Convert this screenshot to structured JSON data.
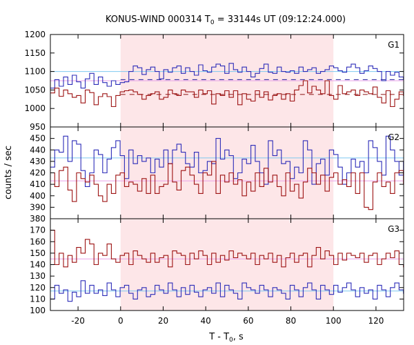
{
  "chart_data": {
    "type": "line",
    "title_main": "KONUS-WIND 000314 T",
    "title_sub": "0",
    "title_rest": " = 33144s UT (09:12:24.000)",
    "xlabel_main": "T - T",
    "xlabel_sub": "0",
    "xlabel_rest": ", s",
    "ylabel": "counts / sec",
    "xlim": [
      -33,
      133
    ],
    "xticks": [
      -20,
      0,
      20,
      40,
      60,
      80,
      100,
      120
    ],
    "xtick_labels": [
      "-20",
      "0",
      "20",
      "40",
      "60",
      "80",
      "100",
      "120"
    ],
    "shade_interval": [
      0,
      100
    ],
    "colors": {
      "shade": "#fde6e8",
      "blue": "#2b2bb8",
      "red": "#9c1010",
      "blue_bg": "#7cc8f0",
      "red_bg": "#e8a0e8",
      "dash": "#1f1f9a",
      "dash_red": "#8a1010"
    },
    "panels": [
      {
        "name": "G1",
        "ylim": [
          950,
          1200
        ],
        "yticks": [
          950,
          1000,
          1050,
          1100,
          1150,
          1200
        ],
        "ytick_labels": [
          "950",
          "1000",
          "1050",
          "1100",
          "1150",
          "1200"
        ],
        "bg_blue": 1100,
        "bg_red": 1075,
        "dash_blue": 1078,
        "dash_red": 1038,
        "series": [
          {
            "color": "blue",
            "x0": -33,
            "dx": 2.048,
            "values": [
              1055,
              1078,
              1060,
              1085,
              1065,
              1090,
              1072,
              1055,
              1080,
              1095,
              1065,
              1085,
              1070,
              1060,
              1075,
              1065,
              1070,
              1072,
              1100,
              1115,
              1110,
              1092,
              1105,
              1112,
              1100,
              1080,
              1105,
              1098,
              1110,
              1115,
              1095,
              1110,
              1100,
              1090,
              1118,
              1102,
              1098,
              1112,
              1120,
              1115,
              1095,
              1122,
              1105,
              1098,
              1112,
              1100,
              1085,
              1095,
              1108,
              1120,
              1098,
              1095,
              1112,
              1100,
              1098,
              1102,
              1095,
              1112,
              1100,
              1105,
              1110,
              1095,
              1100,
              1105,
              1115,
              1110,
              1102,
              1098,
              1112,
              1120,
              1110,
              1095,
              1102,
              1115,
              1108,
              1100,
              1075,
              1100,
              1090,
              1098,
              1085,
              1078
            ]
          },
          {
            "color": "red",
            "x0": -33,
            "dx": 2.048,
            "values": [
              1042,
              1055,
              1033,
              1050,
              1040,
              1030,
              1035,
              1015,
              1050,
              1043,
              1010,
              1032,
              1040,
              1032,
              1005,
              1035,
              1045,
              1048,
              1050,
              1045,
              1038,
              1025,
              1035,
              1040,
              1045,
              1025,
              1030,
              1050,
              1040,
              1035,
              1050,
              1045,
              1045,
              1030,
              1050,
              1040,
              1048,
              1012,
              1040,
              1035,
              1048,
              1030,
              1048,
              1010,
              1040,
              1025,
              1020,
              1048,
              1030,
              1045,
              1023,
              1035,
              1040,
              1025,
              1040,
              1020,
              1050,
              1062,
              1075,
              1042,
              1060,
              1050,
              1040,
              1075,
              1035,
              1025,
              1062,
              1040,
              1045,
              1050,
              1035,
              1050,
              1045,
              1040,
              1058,
              1030,
              1015,
              1048,
              1005,
              1025,
              1045,
              1035
            ]
          }
        ]
      },
      {
        "name": "G2",
        "ylim": [
          380,
          460
        ],
        "yticks": [
          380,
          390,
          400,
          410,
          420,
          430,
          440,
          450
        ],
        "ytick_labels": [
          "380",
          "390",
          "400",
          "410",
          "420",
          "430",
          "440",
          "450"
        ],
        "bg_blue": 433,
        "bg_red": 413,
        "series": [
          {
            "color": "blue",
            "x0": -33,
            "dx": 2.048,
            "values": [
              425,
              440,
              438,
              452,
              430,
              448,
              445,
              422,
              408,
              420,
              440,
              436,
              420,
              432,
              442,
              448,
              435,
              415,
              440,
              428,
              435,
              430,
              433,
              420,
              432,
              425,
              440,
              428,
              440,
              445,
              438,
              428,
              425,
              438,
              420,
              422,
              430,
              428,
              450,
              432,
              440,
              435,
              415,
              420,
              432,
              428,
              444,
              430,
              420,
              410,
              448,
              435,
              440,
              428,
              430,
              415,
              425,
              420,
              448,
              440,
              410,
              428,
              432,
              418,
              440,
              436,
              425,
              410,
              420,
              432,
              425,
              430,
              420,
              448,
              442,
              430,
              418,
              452,
              440,
              430,
              418,
              430
            ]
          },
          {
            "color": "red",
            "x0": -33,
            "dx": 2.048,
            "values": [
              420,
              408,
              422,
              425,
              405,
              395,
              420,
              415,
              412,
              418,
              410,
              400,
              395,
              410,
              402,
              418,
              420,
              408,
              412,
              410,
              404,
              415,
              402,
              418,
              402,
              408,
              410,
              428,
              412,
              405,
              422,
              425,
              418,
              410,
              402,
              420,
              418,
              430,
              402,
              418,
              412,
              420,
              410,
              414,
              400,
              412,
              404,
              420,
              408,
              424,
              412,
              418,
              408,
              400,
              420,
              404,
              410,
              398,
              412,
              424,
              420,
              410,
              418,
              404,
              416,
              420,
              410,
              414,
              408,
              420,
              402,
              420,
              390,
              388,
              412,
              420,
              408,
              412,
              402,
              420,
              422,
              410
            ]
          }
        ]
      },
      {
        "name": "G3",
        "ylim": [
          100,
          180
        ],
        "yticks": [
          100,
          110,
          120,
          130,
          140,
          150,
          160,
          170
        ],
        "ytick_labels": [
          "100",
          "110",
          "120",
          "130",
          "140",
          "150",
          "160",
          "170"
        ],
        "bg_blue": 117,
        "bg_red": 145,
        "series": [
          {
            "color": "blue",
            "x0": -33,
            "dx": 2.048,
            "values": [
              110,
              122,
              115,
              118,
              108,
              116,
              112,
              126,
              115,
              122,
              115,
              118,
              113,
              124,
              118,
              112,
              120,
              122,
              115,
              110,
              118,
              120,
              112,
              114,
              122,
              118,
              115,
              124,
              118,
              112,
              120,
              114,
              122,
              116,
              112,
              118,
              120,
              115,
              124,
              112,
              122,
              118,
              115,
              110,
              124,
              120,
              118,
              115,
              122,
              118,
              112,
              120,
              118,
              115,
              110,
              122,
              118,
              112,
              120,
              124,
              118,
              110,
              122,
              118,
              114,
              122,
              116,
              120,
              124,
              118,
              112,
              120,
              115,
              118,
              110,
              122,
              118,
              112,
              120,
              124,
              118,
              115
            ]
          },
          {
            "color": "red",
            "x0": -33,
            "dx": 2.048,
            "values": [
              170,
              140,
              150,
              138,
              148,
              142,
              155,
              150,
              162,
              158,
              140,
              150,
              148,
              158,
              145,
              142,
              148,
              150,
              140,
              152,
              148,
              145,
              142,
              150,
              142,
              146,
              148,
              138,
              152,
              150,
              148,
              140,
              150,
              145,
              152,
              148,
              140,
              150,
              142,
              148,
              144,
              152,
              146,
              150,
              148,
              145,
              150,
              140,
              148,
              145,
              150,
              142,
              148,
              138,
              146,
              150,
              142,
              148,
              150,
              138,
              148,
              155,
              145,
              152,
              148,
              140,
              150,
              144,
              150,
              148,
              146,
              150,
              142,
              148,
              150,
              140,
              145,
              150,
              146,
              152,
              140,
              138
            ]
          }
        ]
      }
    ]
  }
}
